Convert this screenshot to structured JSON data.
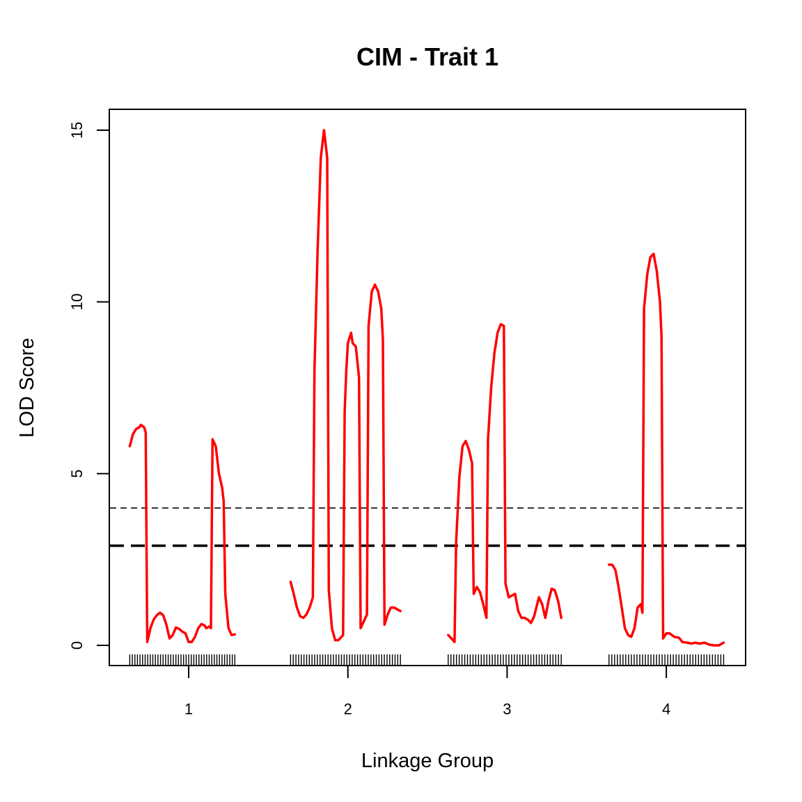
{
  "chart_data": {
    "type": "line",
    "title": "CIM - Trait 1",
    "xlabel": "Linkage Group",
    "ylabel": "LOD Score",
    "x_ticks": [
      "1",
      "2",
      "3",
      "4"
    ],
    "y_ticks": [
      0,
      5,
      10,
      15
    ],
    "ylim": [
      -0.6,
      15.6
    ],
    "grid": false,
    "legend": "none",
    "colors": {
      "lod_curve": "#ff0000",
      "threshold": "#000000",
      "marker_ticks": "#000000"
    },
    "thresholds": [
      {
        "value": 4.0,
        "style": "thin-dashed"
      },
      {
        "value": 2.9,
        "style": "thick-dashed"
      }
    ],
    "markers_per_group": 42,
    "groups": [
      {
        "label": "1",
        "segments": [
          [
            [
              0.63,
              5.8
            ],
            [
              0.65,
              6.15
            ],
            [
              0.67,
              6.3
            ],
            [
              0.69,
              6.35
            ],
            [
              0.7,
              6.42
            ],
            [
              0.72,
              6.35
            ],
            [
              0.73,
              6.2
            ],
            [
              0.74,
              0.1
            ],
            [
              0.76,
              0.5
            ],
            [
              0.78,
              0.75
            ],
            [
              0.8,
              0.88
            ],
            [
              0.82,
              0.95
            ],
            [
              0.84,
              0.88
            ],
            [
              0.86,
              0.6
            ],
            [
              0.88,
              0.2
            ],
            [
              0.9,
              0.3
            ],
            [
              0.92,
              0.52
            ],
            [
              0.94,
              0.48
            ],
            [
              0.96,
              0.4
            ],
            [
              0.98,
              0.35
            ],
            [
              1.0,
              0.1
            ],
            [
              1.02,
              0.1
            ],
            [
              1.04,
              0.25
            ],
            [
              1.06,
              0.5
            ],
            [
              1.08,
              0.62
            ],
            [
              1.1,
              0.58
            ],
            [
              1.11,
              0.5
            ],
            [
              1.13,
              0.55
            ],
            [
              1.14,
              0.5
            ],
            [
              1.15,
              6.0
            ],
            [
              1.17,
              5.8
            ],
            [
              1.19,
              5.0
            ],
            [
              1.21,
              4.6
            ],
            [
              1.22,
              4.2
            ],
            [
              1.23,
              1.5
            ],
            [
              1.25,
              0.5
            ],
            [
              1.27,
              0.3
            ],
            [
              1.29,
              0.32
            ]
          ]
        ]
      },
      {
        "label": "2",
        "segments": [
          [
            [
              1.64,
              1.85
            ],
            [
              1.66,
              1.5
            ],
            [
              1.68,
              1.1
            ],
            [
              1.7,
              0.85
            ],
            [
              1.72,
              0.8
            ],
            [
              1.74,
              0.9
            ],
            [
              1.76,
              1.1
            ],
            [
              1.78,
              1.4
            ],
            [
              1.79,
              8.0
            ],
            [
              1.81,
              11.5
            ],
            [
              1.83,
              14.2
            ],
            [
              1.85,
              15.0
            ],
            [
              1.86,
              14.6
            ],
            [
              1.87,
              14.2
            ],
            [
              1.88,
              1.6
            ],
            [
              1.9,
              0.5
            ],
            [
              1.92,
              0.15
            ],
            [
              1.94,
              0.15
            ],
            [
              1.96,
              0.25
            ],
            [
              1.97,
              0.3
            ],
            [
              1.98,
              6.8
            ],
            [
              1.99,
              8.0
            ],
            [
              2.0,
              8.8
            ],
            [
              2.02,
              9.1
            ],
            [
              2.03,
              8.8
            ],
            [
              2.05,
              8.7
            ],
            [
              2.07,
              7.8
            ],
            [
              2.08,
              0.5
            ],
            [
              2.1,
              0.7
            ],
            [
              2.12,
              0.9
            ],
            [
              2.13,
              9.3
            ],
            [
              2.15,
              10.3
            ],
            [
              2.17,
              10.5
            ],
            [
              2.19,
              10.3
            ],
            [
              2.21,
              9.8
            ],
            [
              2.22,
              8.9
            ],
            [
              2.23,
              0.6
            ],
            [
              2.25,
              0.9
            ],
            [
              2.27,
              1.1
            ],
            [
              2.29,
              1.1
            ],
            [
              2.31,
              1.05
            ],
            [
              2.33,
              1.0
            ]
          ]
        ]
      },
      {
        "label": "3",
        "segments": [
          [
            [
              2.63,
              0.3
            ],
            [
              2.65,
              0.2
            ],
            [
              2.67,
              0.1
            ],
            [
              2.68,
              3.0
            ],
            [
              2.7,
              4.9
            ],
            [
              2.72,
              5.8
            ],
            [
              2.74,
              5.95
            ],
            [
              2.76,
              5.7
            ],
            [
              2.78,
              5.3
            ],
            [
              2.79,
              1.5
            ],
            [
              2.81,
              1.7
            ],
            [
              2.83,
              1.55
            ],
            [
              2.85,
              1.2
            ],
            [
              2.87,
              0.8
            ],
            [
              2.88,
              6.0
            ],
            [
              2.9,
              7.5
            ],
            [
              2.92,
              8.5
            ],
            [
              2.94,
              9.1
            ],
            [
              2.96,
              9.35
            ],
            [
              2.98,
              9.3
            ],
            [
              2.99,
              1.8
            ],
            [
              3.01,
              1.4
            ],
            [
              3.03,
              1.45
            ],
            [
              3.05,
              1.5
            ],
            [
              3.07,
              1.0
            ],
            [
              3.09,
              0.8
            ],
            [
              3.11,
              0.8
            ],
            [
              3.13,
              0.75
            ],
            [
              3.15,
              0.65
            ],
            [
              3.17,
              0.85
            ],
            [
              3.2,
              1.4
            ],
            [
              3.22,
              1.2
            ],
            [
              3.24,
              0.8
            ],
            [
              3.26,
              1.3
            ],
            [
              3.28,
              1.65
            ],
            [
              3.3,
              1.6
            ],
            [
              3.32,
              1.3
            ],
            [
              3.34,
              0.8
            ]
          ]
        ]
      },
      {
        "label": "4",
        "segments": [
          [
            [
              3.64,
              2.35
            ],
            [
              3.66,
              2.35
            ],
            [
              3.68,
              2.2
            ],
            [
              3.7,
              1.7
            ],
            [
              3.72,
              1.1
            ],
            [
              3.74,
              0.5
            ],
            [
              3.76,
              0.3
            ],
            [
              3.78,
              0.25
            ],
            [
              3.8,
              0.5
            ],
            [
              3.82,
              1.1
            ],
            [
              3.84,
              1.2
            ],
            [
              3.85,
              0.95
            ],
            [
              3.86,
              9.8
            ],
            [
              3.88,
              10.8
            ],
            [
              3.9,
              11.3
            ],
            [
              3.92,
              11.4
            ],
            [
              3.94,
              10.9
            ],
            [
              3.96,
              10.0
            ],
            [
              3.97,
              9.0
            ],
            [
              3.98,
              0.2
            ],
            [
              4.0,
              0.35
            ],
            [
              4.02,
              0.35
            ],
            [
              4.05,
              0.25
            ],
            [
              4.08,
              0.22
            ],
            [
              4.1,
              0.1
            ],
            [
              4.13,
              0.08
            ],
            [
              4.16,
              0.05
            ],
            [
              4.18,
              0.08
            ],
            [
              4.21,
              0.05
            ],
            [
              4.24,
              0.08
            ],
            [
              4.27,
              0.02
            ],
            [
              4.3,
              0.0
            ],
            [
              4.33,
              0.0
            ],
            [
              4.36,
              0.08
            ]
          ]
        ]
      }
    ]
  }
}
